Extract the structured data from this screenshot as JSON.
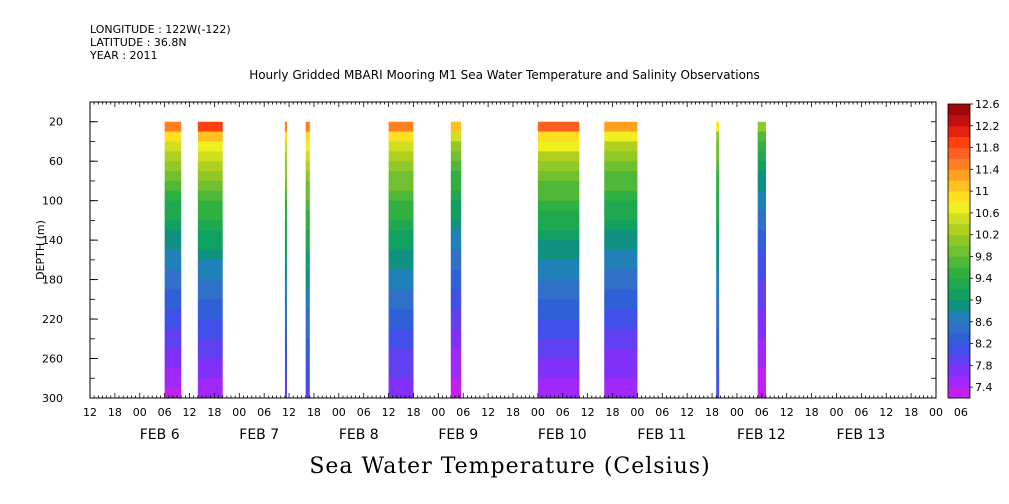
{
  "header": {
    "longitude": "LONGITUDE : 122W(-122)",
    "latitude": "LATITUDE : 36.8N",
    "year": "YEAR : 2011"
  },
  "chart_data": {
    "type": "heatmap",
    "title": "Hourly Gridded MBARI Mooring M1 Sea Water Temperature and Salinity Observations",
    "xlabel": "Sea Water Temperature (Celsius)",
    "ylabel": "DEPTH (m)",
    "y_axis": {
      "range": [
        300,
        0
      ],
      "ticks": [
        20,
        60,
        100,
        140,
        180,
        220,
        260,
        300
      ],
      "data_top": 20
    },
    "x_axis": {
      "units": "hours since 2011-02-05 12:00",
      "range": [
        0,
        204
      ],
      "hour_ticks": [
        "12",
        "18",
        "00",
        "06",
        "12",
        "18",
        "00",
        "06",
        "12",
        "18",
        "00",
        "06",
        "12",
        "18",
        "00",
        "06",
        "12",
        "18",
        "00",
        "06",
        "12",
        "18",
        "00",
        "06",
        "12",
        "18",
        "00",
        "06",
        "12",
        "18",
        "00",
        "06",
        "12",
        "18",
        "00",
        "06"
      ],
      "day_labels": [
        {
          "label": "FEB  6",
          "hour": 12
        },
        {
          "label": "FEB  7",
          "hour": 36
        },
        {
          "label": "FEB  8",
          "hour": 60
        },
        {
          "label": "FEB  9",
          "hour": 84
        },
        {
          "label": "FEB 10",
          "hour": 108
        },
        {
          "label": "FEB 11",
          "hour": 132
        },
        {
          "label": "FEB 12",
          "hour": 156
        },
        {
          "label": "FEB 13",
          "hour": 180
        }
      ]
    },
    "colorbar": {
      "levels": [
        7.4,
        7.6,
        7.8,
        8.0,
        8.2,
        8.4,
        8.6,
        8.8,
        9.0,
        9.2,
        9.4,
        9.6,
        9.8,
        10.0,
        10.2,
        10.4,
        10.6,
        10.8,
        11.0,
        11.2,
        11.4,
        11.6,
        11.8,
        12.0,
        12.2,
        12.4,
        12.6,
        12.8
      ],
      "tick_labels": [
        "7.4",
        "7.8",
        "8.2",
        "8.6",
        "9",
        "9.4",
        "9.8",
        "10.2",
        "10.6",
        "11",
        "11.4",
        "11.8",
        "12.2",
        "12.6"
      ],
      "colors": [
        "#c020f0",
        "#a028f8",
        "#8030f8",
        "#6040f0",
        "#4050e8",
        "#3060d8",
        "#3070c8",
        "#2080b8",
        "#109080",
        "#10a060",
        "#20a850",
        "#30b040",
        "#50b838",
        "#70c030",
        "#90c828",
        "#b0d020",
        "#d0e020",
        "#f0f020",
        "#ffe020",
        "#ffc020",
        "#ffa020",
        "#ff8020",
        "#ff6020",
        "#ff4010",
        "#e82010",
        "#c01010",
        "#a00808"
      ]
    },
    "segments": [
      {
        "start": 18.0,
        "end": 22.0,
        "top": 11.7,
        "bottom": 7.5
      },
      {
        "start": 26.0,
        "end": 32.0,
        "top": 12.0,
        "bottom": 7.6
      },
      {
        "start": 47.0,
        "end": 47.5,
        "top": 11.6,
        "bottom": 8.0
      },
      {
        "start": 52.0,
        "end": 53.0,
        "top": 11.7,
        "bottom": 8.1
      },
      {
        "start": 72.0,
        "end": 78.0,
        "top": 11.7,
        "bottom": 7.8
      },
      {
        "start": 87.0,
        "end": 89.5,
        "top": 11.3,
        "bottom": 7.4
      },
      {
        "start": 108.0,
        "end": 118.0,
        "top": 11.8,
        "bottom": 7.6
      },
      {
        "start": 124.0,
        "end": 132.0,
        "top": 11.5,
        "bottom": 7.6
      },
      {
        "start": 151.0,
        "end": 151.7,
        "top": 10.8,
        "bottom": 8.2
      },
      {
        "start": 161.0,
        "end": 163.0,
        "top": 10.3,
        "bottom": 7.4
      }
    ]
  }
}
